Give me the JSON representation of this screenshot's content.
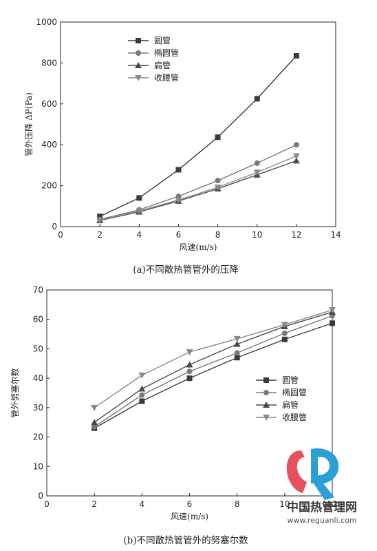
{
  "colors": {
    "series": [
      "#3a3a3a",
      "#7a7a7a",
      "#4a4a4a",
      "#8a8a8a"
    ],
    "axis": "#222222",
    "logo_red": "#e8505b",
    "logo_blue": "#2a9fd8"
  },
  "watermark": {
    "name": "中国热管理网",
    "url": "www.reguanli.com"
  },
  "chart_data": [
    {
      "type": "line",
      "caption": "(a)不同散热管管外的压降",
      "xlabel": "风速(m/s)",
      "ylabel": "管外压降 ΔP(Pa)",
      "xlim": [
        0,
        14
      ],
      "ylim": [
        0,
        1000
      ],
      "xticks": [
        0,
        2,
        4,
        6,
        8,
        10,
        12,
        14
      ],
      "yticks": [
        0,
        200,
        400,
        600,
        800,
        1000
      ],
      "legend_position": "top-left",
      "x": [
        2,
        4,
        6,
        8,
        10,
        12
      ],
      "series": [
        {
          "name": "圆管",
          "marker": "square",
          "values": [
            50,
            140,
            278,
            437,
            625,
            835
          ]
        },
        {
          "name": "椭圆管",
          "marker": "circle",
          "values": [
            35,
            82,
            148,
            225,
            310,
            400
          ]
        },
        {
          "name": "扁管",
          "marker": "triangle-up",
          "values": [
            30,
            72,
            125,
            185,
            253,
            322
          ]
        },
        {
          "name": "收腰管",
          "marker": "triangle-down",
          "values": [
            32,
            76,
            130,
            192,
            265,
            345
          ]
        }
      ]
    },
    {
      "type": "line",
      "caption": "(b)不同散热管管外的努塞尔数",
      "xlabel": "风速(m/s)",
      "ylabel": "管外努塞尔数",
      "xlim": [
        0,
        12
      ],
      "ylim": [
        0,
        70
      ],
      "xticks": [
        0,
        2,
        4,
        6,
        8,
        10,
        12
      ],
      "yticks": [
        0,
        10,
        20,
        30,
        40,
        50,
        60,
        70
      ],
      "legend_position": "middle-right",
      "x": [
        2,
        4,
        6,
        8,
        10,
        12
      ],
      "series": [
        {
          "name": "圆管",
          "marker": "square",
          "values": [
            23,
            32.2,
            40,
            47,
            53.2,
            58.7
          ]
        },
        {
          "name": "椭圆管",
          "marker": "circle",
          "values": [
            23.5,
            34.3,
            42.3,
            48.6,
            55.3,
            61.2
          ]
        },
        {
          "name": "扁管",
          "marker": "triangle-up",
          "values": [
            25,
            36.4,
            44.6,
            51.6,
            57.6,
            62.5
          ]
        },
        {
          "name": "收腰管",
          "marker": "triangle-down",
          "values": [
            30,
            41,
            48.9,
            53.4,
            58.2,
            63.2
          ]
        }
      ]
    }
  ]
}
